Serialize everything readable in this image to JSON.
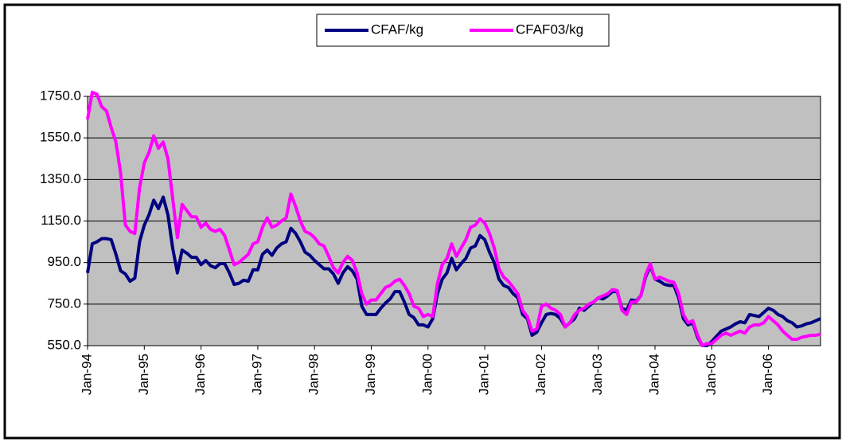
{
  "chart_data": {
    "type": "line",
    "categories": [
      "Jan-94",
      null,
      null,
      null,
      null,
      null,
      null,
      null,
      null,
      null,
      null,
      null,
      "Jan-95",
      null,
      null,
      null,
      null,
      null,
      null,
      null,
      null,
      null,
      null,
      null,
      "Jan-96",
      null,
      null,
      null,
      null,
      null,
      null,
      null,
      null,
      null,
      null,
      null,
      "Jan-97",
      null,
      null,
      null,
      null,
      null,
      null,
      null,
      null,
      null,
      null,
      null,
      "Jan-98",
      null,
      null,
      null,
      null,
      null,
      null,
      null,
      null,
      null,
      null,
      null,
      "Jan-99",
      null,
      null,
      null,
      null,
      null,
      null,
      null,
      null,
      null,
      null,
      null,
      "Jan-00",
      null,
      null,
      null,
      null,
      null,
      null,
      null,
      null,
      null,
      null,
      null,
      "Jan-01",
      null,
      null,
      null,
      null,
      null,
      null,
      null,
      null,
      null,
      null,
      null,
      "Jan-02",
      null,
      null,
      null,
      null,
      null,
      null,
      null,
      null,
      null,
      null,
      null,
      "Jan-03",
      null,
      null,
      null,
      null,
      null,
      null,
      null,
      null,
      null,
      null,
      null,
      "Jan-04",
      null,
      null,
      null,
      null,
      null,
      null,
      null,
      null,
      null,
      null,
      null,
      "Jan-05",
      null,
      null,
      null,
      null,
      null,
      null,
      null,
      null,
      null,
      null,
      null,
      "Jan-06",
      null,
      null,
      null,
      null,
      null,
      null,
      null,
      null,
      null,
      null,
      null
    ],
    "series": [
      {
        "name": "CFAF/kg",
        "color": "#000080",
        "values": [
          900,
          1040,
          1050,
          1065,
          1065,
          1060,
          990,
          910,
          895,
          860,
          875,
          1050,
          1130,
          1180,
          1250,
          1210,
          1265,
          1180,
          1020,
          900,
          1010,
          995,
          975,
          975,
          940,
          960,
          935,
          925,
          945,
          945,
          900,
          845,
          850,
          865,
          860,
          915,
          915,
          990,
          1010,
          985,
          1020,
          1040,
          1050,
          1115,
          1090,
          1050,
          1000,
          985,
          960,
          940,
          920,
          920,
          895,
          850,
          900,
          930,
          910,
          870,
          740,
          700,
          700,
          700,
          730,
          755,
          775,
          810,
          810,
          760,
          700,
          685,
          650,
          650,
          640,
          680,
          800,
          870,
          900,
          970,
          915,
          945,
          970,
          1020,
          1030,
          1080,
          1060,
          1000,
          950,
          870,
          840,
          830,
          800,
          780,
          700,
          680,
          600,
          615,
          660,
          700,
          705,
          700,
          680,
          640,
          660,
          680,
          730,
          720,
          740,
          760,
          780,
          775,
          790,
          810,
          810,
          730,
          720,
          770,
          765,
          790,
          880,
          935,
          870,
          860,
          845,
          840,
          840,
          780,
          680,
          650,
          660,
          590,
          550,
          550,
          570,
          595,
          620,
          630,
          640,
          655,
          665,
          660,
          700,
          695,
          690,
          710,
          730,
          720,
          700,
          690,
          670,
          660,
          640,
          645,
          655,
          660,
          670,
          680
        ]
      },
      {
        "name": "CFAF03/kg",
        "color": "#ff00ff",
        "values": [
          1640,
          1770,
          1760,
          1700,
          1680,
          1600,
          1530,
          1380,
          1130,
          1100,
          1090,
          1310,
          1430,
          1480,
          1560,
          1500,
          1530,
          1450,
          1260,
          1070,
          1230,
          1200,
          1170,
          1170,
          1120,
          1140,
          1110,
          1100,
          1110,
          1080,
          1010,
          940,
          950,
          970,
          990,
          1040,
          1050,
          1120,
          1165,
          1120,
          1130,
          1150,
          1165,
          1280,
          1220,
          1150,
          1100,
          1090,
          1070,
          1040,
          1030,
          980,
          925,
          900,
          950,
          980,
          960,
          900,
          800,
          750,
          770,
          770,
          800,
          830,
          840,
          860,
          870,
          840,
          800,
          740,
          730,
          690,
          700,
          690,
          850,
          940,
          970,
          1040,
          980,
          1020,
          1060,
          1120,
          1130,
          1160,
          1140,
          1090,
          1020,
          920,
          880,
          860,
          830,
          800,
          720,
          690,
          620,
          630,
          740,
          750,
          730,
          720,
          700,
          640,
          660,
          700,
          720,
          730,
          750,
          760,
          780,
          790,
          800,
          820,
          815,
          720,
          700,
          760,
          760,
          790,
          890,
          945,
          870,
          880,
          870,
          860,
          855,
          800,
          700,
          660,
          670,
          600,
          550,
          560,
          560,
          580,
          600,
          610,
          600,
          610,
          620,
          610,
          640,
          650,
          650,
          660,
          690,
          670,
          650,
          620,
          600,
          580,
          580,
          590,
          595,
          600,
          600,
          605
        ]
      }
    ],
    "ylim": [
      550,
      1750
    ],
    "yticks": [
      {
        "value": 550,
        "label": "550.0"
      },
      {
        "value": 750,
        "label": "750.0"
      },
      {
        "value": 950,
        "label": "950.0"
      },
      {
        "value": 1150,
        "label": "1150.0"
      },
      {
        "value": 1350,
        "label": "1350.0"
      },
      {
        "value": 1550,
        "label": "1550.0"
      },
      {
        "value": 1750,
        "label": "1750.0"
      }
    ],
    "grid": true,
    "legend": "top"
  }
}
